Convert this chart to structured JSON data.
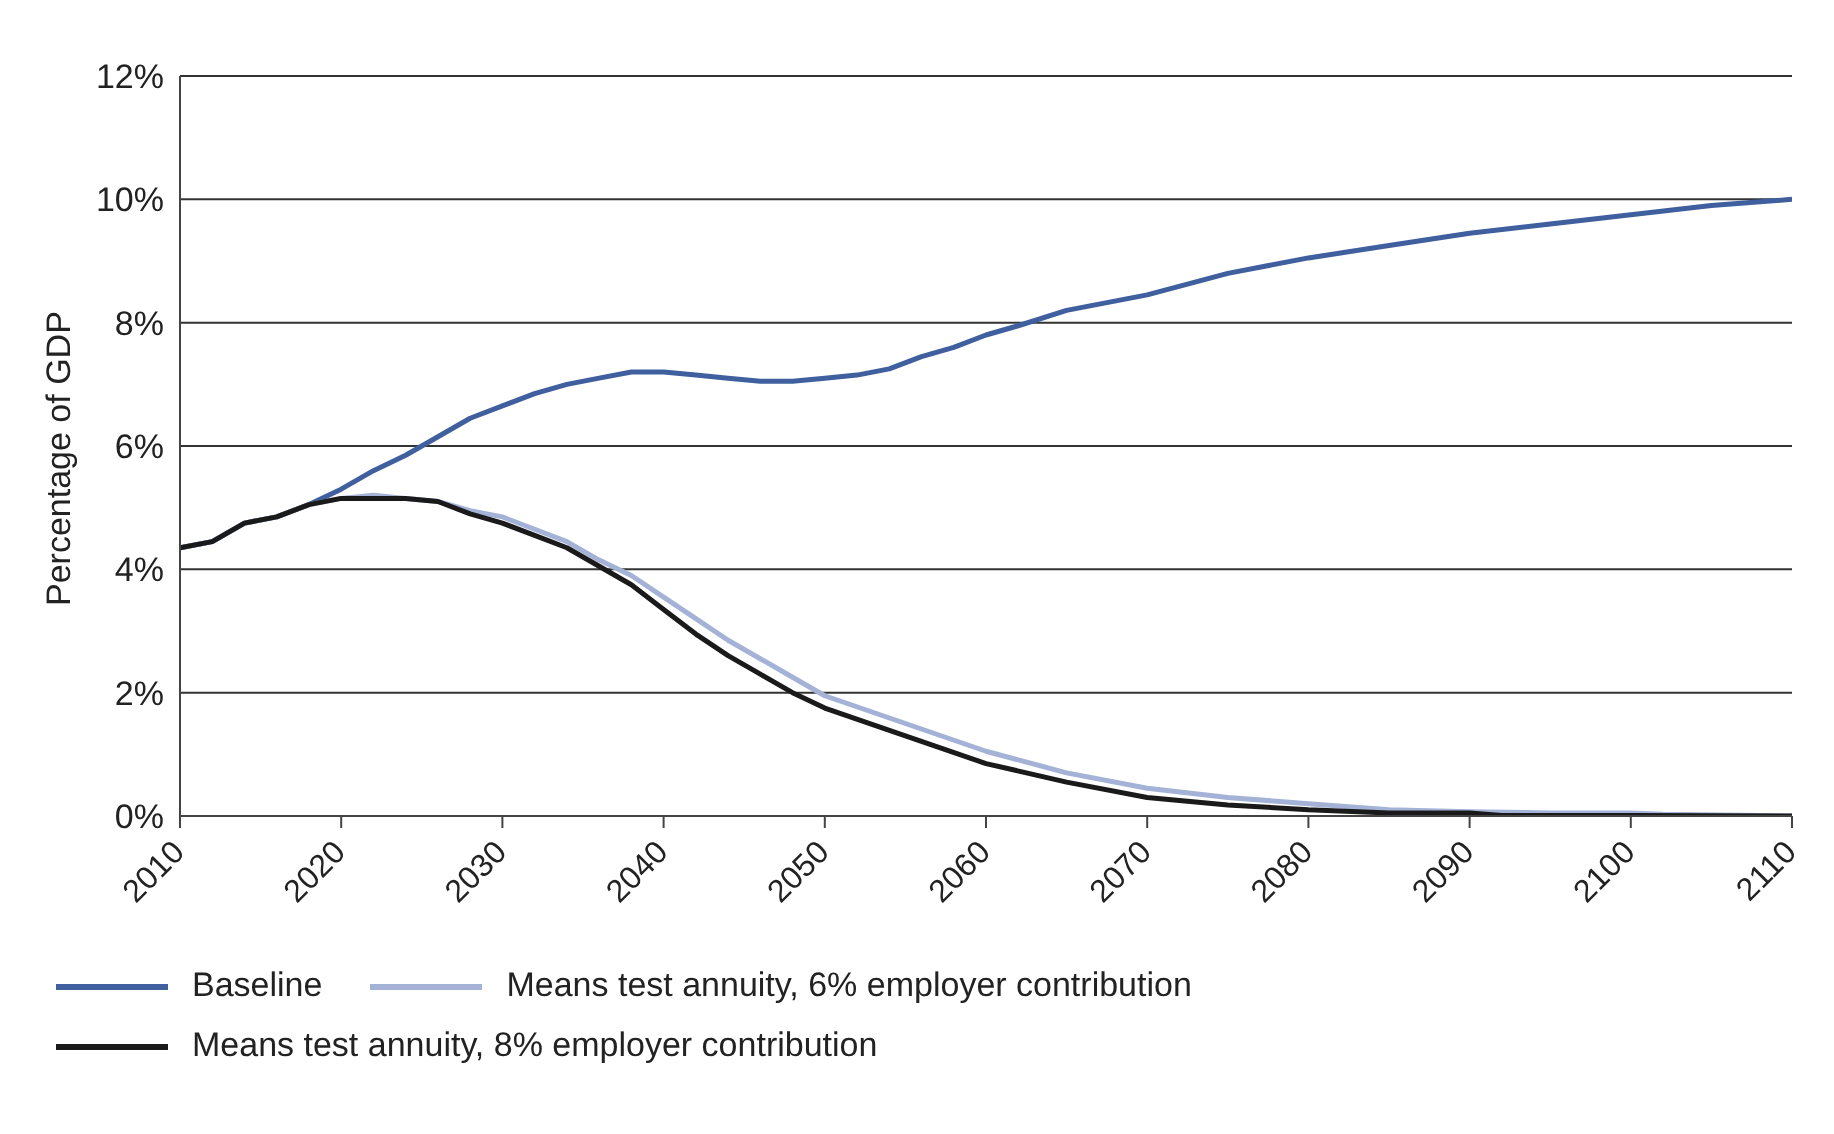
{
  "chart_data": {
    "type": "line",
    "ylabel": "Percentage of GDP",
    "xlim": [
      2010,
      2110
    ],
    "xticks": [
      2010,
      2020,
      2030,
      2040,
      2050,
      2060,
      2070,
      2080,
      2090,
      2100,
      2110
    ],
    "ylim": [
      0,
      12
    ],
    "yticks": [
      {
        "value": 0,
        "label": "0%"
      },
      {
        "value": 2,
        "label": "2%"
      },
      {
        "value": 4,
        "label": "4%"
      },
      {
        "value": 6,
        "label": "6%"
      },
      {
        "value": 8,
        "label": "8%"
      },
      {
        "value": 10,
        "label": "10%"
      },
      {
        "value": 12,
        "label": "12%"
      }
    ],
    "grid": "y",
    "legend": "bottom",
    "marker": "none",
    "line_style": "solid",
    "series": [
      {
        "name": "Baseline",
        "color": "#3f5f9e",
        "x": [
          2010,
          2012,
          2014,
          2016,
          2018,
          2020,
          2022,
          2024,
          2026,
          2028,
          2030,
          2032,
          2034,
          2036,
          2038,
          2040,
          2042,
          2044,
          2046,
          2048,
          2050,
          2052,
          2054,
          2056,
          2058,
          2060,
          2062,
          2065,
          2070,
          2075,
          2080,
          2085,
          2090,
          2095,
          2100,
          2105,
          2110
        ],
        "values": [
          4.35,
          4.45,
          4.75,
          4.85,
          5.05,
          5.3,
          5.6,
          5.85,
          6.15,
          6.45,
          6.65,
          6.85,
          7.0,
          7.1,
          7.2,
          7.2,
          7.15,
          7.1,
          7.05,
          7.05,
          7.1,
          7.15,
          7.25,
          7.45,
          7.6,
          7.8,
          7.95,
          8.2,
          8.45,
          8.8,
          9.05,
          9.25,
          9.45,
          9.6,
          9.75,
          9.9,
          10.0
        ]
      },
      {
        "name": "Means test annuity, 6% employer contribution",
        "color": "#a3b2d6",
        "x": [
          2010,
          2012,
          2014,
          2016,
          2018,
          2020,
          2022,
          2024,
          2026,
          2028,
          2030,
          2032,
          2034,
          2036,
          2038,
          2040,
          2042,
          2044,
          2046,
          2048,
          2050,
          2055,
          2060,
          2065,
          2070,
          2075,
          2080,
          2085,
          2090,
          2095,
          2100,
          2102,
          2110
        ],
        "values": [
          4.35,
          4.45,
          4.75,
          4.85,
          5.05,
          5.15,
          5.2,
          5.15,
          5.1,
          4.95,
          4.85,
          4.65,
          4.45,
          4.15,
          3.9,
          3.55,
          3.2,
          2.85,
          2.55,
          2.25,
          1.95,
          1.5,
          1.05,
          0.7,
          0.45,
          0.3,
          0.2,
          0.1,
          0.07,
          0.05,
          0.05,
          0.03,
          0
        ]
      },
      {
        "name": "Means test annuity, 8% employer contribution",
        "color": "#1a1a1a",
        "x": [
          2010,
          2012,
          2014,
          2016,
          2018,
          2020,
          2022,
          2024,
          2026,
          2028,
          2030,
          2032,
          2034,
          2036,
          2038,
          2040,
          2042,
          2044,
          2046,
          2048,
          2050,
          2055,
          2060,
          2065,
          2070,
          2075,
          2080,
          2085,
          2090,
          2092,
          2100,
          2110
        ],
        "values": [
          4.35,
          4.45,
          4.75,
          4.85,
          5.05,
          5.15,
          5.15,
          5.15,
          5.1,
          4.9,
          4.75,
          4.55,
          4.35,
          4.05,
          3.75,
          3.35,
          2.95,
          2.6,
          2.3,
          2.0,
          1.75,
          1.3,
          0.85,
          0.55,
          0.3,
          0.18,
          0.1,
          0.05,
          0.05,
          0.01,
          0.01,
          0
        ]
      }
    ]
  }
}
